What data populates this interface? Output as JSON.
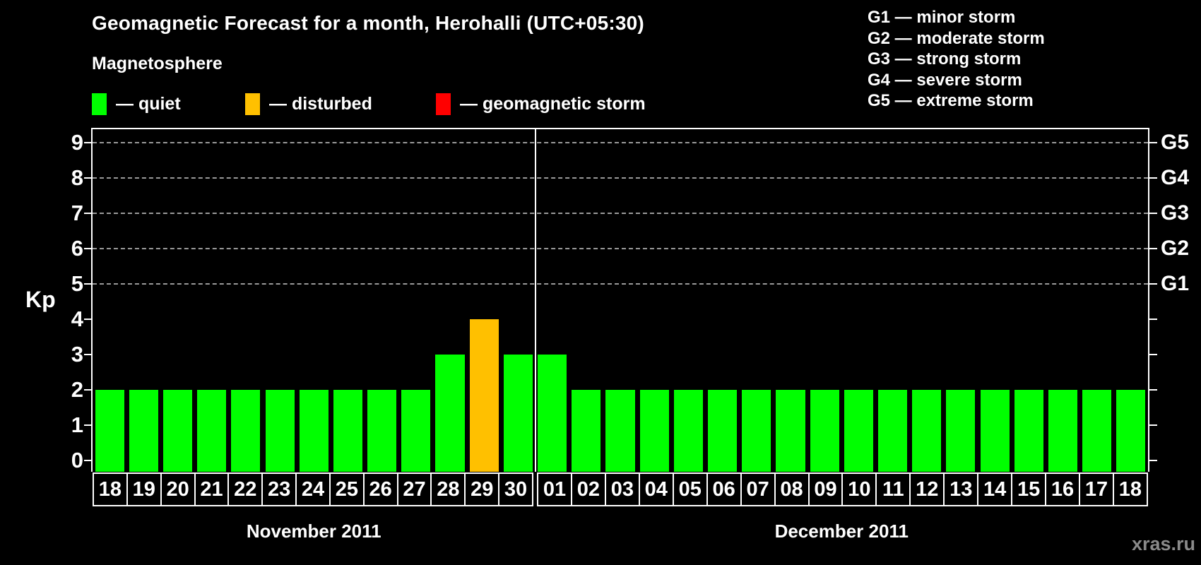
{
  "title": "Geomagnetic Forecast for a month, Herohalli (UTC+05:30)",
  "legend": {
    "heading": "Magnetosphere",
    "items": [
      {
        "name": "quiet",
        "label": "— quiet",
        "color": "#00ff00"
      },
      {
        "name": "disturbed",
        "label": "— disturbed",
        "color": "#ffc000"
      },
      {
        "name": "geomagnetic-storm",
        "label": "— geomagnetic storm",
        "color": "#ff0000"
      }
    ]
  },
  "storm_scale": [
    {
      "label": "G1 — minor storm"
    },
    {
      "label": "G2 — moderate storm"
    },
    {
      "label": "G3 — strong storm"
    },
    {
      "label": "G4 — severe storm"
    },
    {
      "label": "G5 — extreme storm"
    }
  ],
  "chart_data": {
    "type": "bar",
    "ylabel": "Kp",
    "ylim": [
      0,
      9
    ],
    "yticks": [
      0,
      1,
      2,
      3,
      4,
      5,
      6,
      7,
      8,
      9
    ],
    "grid_values": [
      5,
      6,
      7,
      8,
      9
    ],
    "right_axis_labels": [
      {
        "kp": 5,
        "label": "G1"
      },
      {
        "kp": 6,
        "label": "G2"
      },
      {
        "kp": 7,
        "label": "G3"
      },
      {
        "kp": 8,
        "label": "G4"
      },
      {
        "kp": 9,
        "label": "G5"
      }
    ],
    "colors": {
      "quiet": "#00ff00",
      "disturbed": "#ffc000",
      "geomagnetic-storm": "#ff0000"
    },
    "months": [
      {
        "label": "November 2011",
        "days": [
          {
            "day": "18",
            "kp": 2,
            "status": "quiet"
          },
          {
            "day": "19",
            "kp": 2,
            "status": "quiet"
          },
          {
            "day": "20",
            "kp": 2,
            "status": "quiet"
          },
          {
            "day": "21",
            "kp": 2,
            "status": "quiet"
          },
          {
            "day": "22",
            "kp": 2,
            "status": "quiet"
          },
          {
            "day": "23",
            "kp": 2,
            "status": "quiet"
          },
          {
            "day": "24",
            "kp": 2,
            "status": "quiet"
          },
          {
            "day": "25",
            "kp": 2,
            "status": "quiet"
          },
          {
            "day": "26",
            "kp": 2,
            "status": "quiet"
          },
          {
            "day": "27",
            "kp": 2,
            "status": "quiet"
          },
          {
            "day": "28",
            "kp": 3,
            "status": "quiet"
          },
          {
            "day": "29",
            "kp": 4,
            "status": "disturbed"
          },
          {
            "day": "30",
            "kp": 3,
            "status": "quiet"
          }
        ]
      },
      {
        "label": "December 2011",
        "days": [
          {
            "day": "01",
            "kp": 3,
            "status": "quiet"
          },
          {
            "day": "02",
            "kp": 2,
            "status": "quiet"
          },
          {
            "day": "03",
            "kp": 2,
            "status": "quiet"
          },
          {
            "day": "04",
            "kp": 2,
            "status": "quiet"
          },
          {
            "day": "05",
            "kp": 2,
            "status": "quiet"
          },
          {
            "day": "06",
            "kp": 2,
            "status": "quiet"
          },
          {
            "day": "07",
            "kp": 2,
            "status": "quiet"
          },
          {
            "day": "08",
            "kp": 2,
            "status": "quiet"
          },
          {
            "day": "09",
            "kp": 2,
            "status": "quiet"
          },
          {
            "day": "10",
            "kp": 2,
            "status": "quiet"
          },
          {
            "day": "11",
            "kp": 2,
            "status": "quiet"
          },
          {
            "day": "12",
            "kp": 2,
            "status": "quiet"
          },
          {
            "day": "13",
            "kp": 2,
            "status": "quiet"
          },
          {
            "day": "14",
            "kp": 2,
            "status": "quiet"
          },
          {
            "day": "15",
            "kp": 2,
            "status": "quiet"
          },
          {
            "day": "16",
            "kp": 2,
            "status": "quiet"
          },
          {
            "day": "17",
            "kp": 2,
            "status": "quiet"
          },
          {
            "day": "18",
            "kp": 2,
            "status": "quiet"
          }
        ]
      }
    ]
  },
  "watermark": "xras.ru"
}
